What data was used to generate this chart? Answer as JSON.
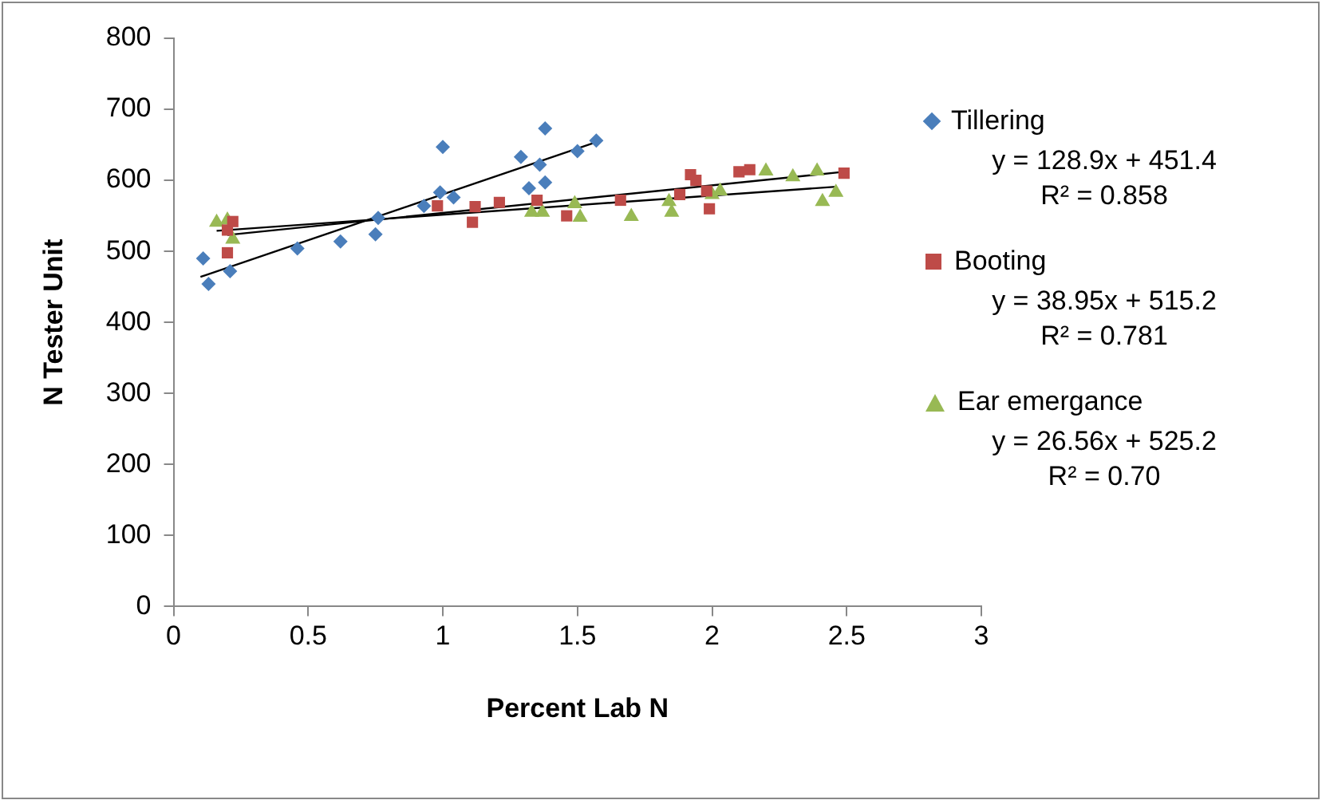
{
  "chart_data": {
    "type": "scatter",
    "xlabel": "Percent Lab N",
    "ylabel": "N Tester Unit",
    "xlim": [
      0,
      3
    ],
    "xticks": [
      0,
      0.5,
      1,
      1.5,
      2,
      2.5,
      3
    ],
    "ylim": [
      0,
      800
    ],
    "yticks": [
      0,
      100,
      200,
      300,
      400,
      500,
      600,
      700,
      800
    ],
    "grid": false,
    "legend": "right",
    "series": [
      {
        "name": "Tillering",
        "color": "#4a7ebb",
        "marker": "diamond",
        "x": [
          0.11,
          0.13,
          0.21,
          0.46,
          0.62,
          0.75,
          0.76,
          0.93,
          0.99,
          1.0,
          1.04,
          1.29,
          1.32,
          1.36,
          1.38,
          1.38,
          1.5,
          1.57
        ],
        "values": [
          490,
          454,
          472,
          504,
          514,
          524,
          547,
          564,
          583,
          647,
          576,
          633,
          589,
          622,
          673,
          597,
          641,
          656
        ]
      },
      {
        "name": "Booting",
        "color": "#be4b48",
        "marker": "square",
        "x": [
          0.2,
          0.22,
          0.2,
          0.98,
          1.11,
          1.12,
          1.21,
          1.35,
          1.46,
          1.66,
          1.88,
          1.92,
          1.94,
          1.98,
          1.99,
          2.1,
          2.14,
          2.49
        ],
        "values": [
          530,
          542,
          498,
          564,
          541,
          563,
          569,
          572,
          550,
          572,
          580,
          608,
          600,
          585,
          560,
          612,
          615,
          610
        ]
      },
      {
        "name": "Ear emergance",
        "color": "#98b954",
        "marker": "triangle",
        "x": [
          0.16,
          0.2,
          0.22,
          1.33,
          1.37,
          1.49,
          1.51,
          1.7,
          1.84,
          1.85,
          2.0,
          2.03,
          2.2,
          2.3,
          2.39,
          2.41,
          2.46
        ],
        "values": [
          541,
          544,
          517,
          555,
          555,
          567,
          548,
          549,
          570,
          555,
          580,
          585,
          613,
          605,
          613,
          570,
          583
        ]
      },
      {
        "type": "line",
        "color": "#000000",
        "marker": "none",
        "x": [
          0.1,
          1.57
        ],
        "values": [
          464,
          654
        ]
      },
      {
        "type": "line",
        "color": "#000000",
        "marker": "none",
        "x": [
          0.2,
          2.49
        ],
        "values": [
          523,
          612
        ]
      },
      {
        "type": "line",
        "color": "#000000",
        "marker": "none",
        "x": [
          0.16,
          2.46
        ],
        "values": [
          529,
          591
        ]
      }
    ],
    "annotations": [
      "y = 128.9x + 451.4",
      "R² = 0.858",
      "y = 38.95x + 515.2",
      "R² = 0.781",
      "y = 26.56x + 525.2",
      "R² = 0.70"
    ]
  }
}
